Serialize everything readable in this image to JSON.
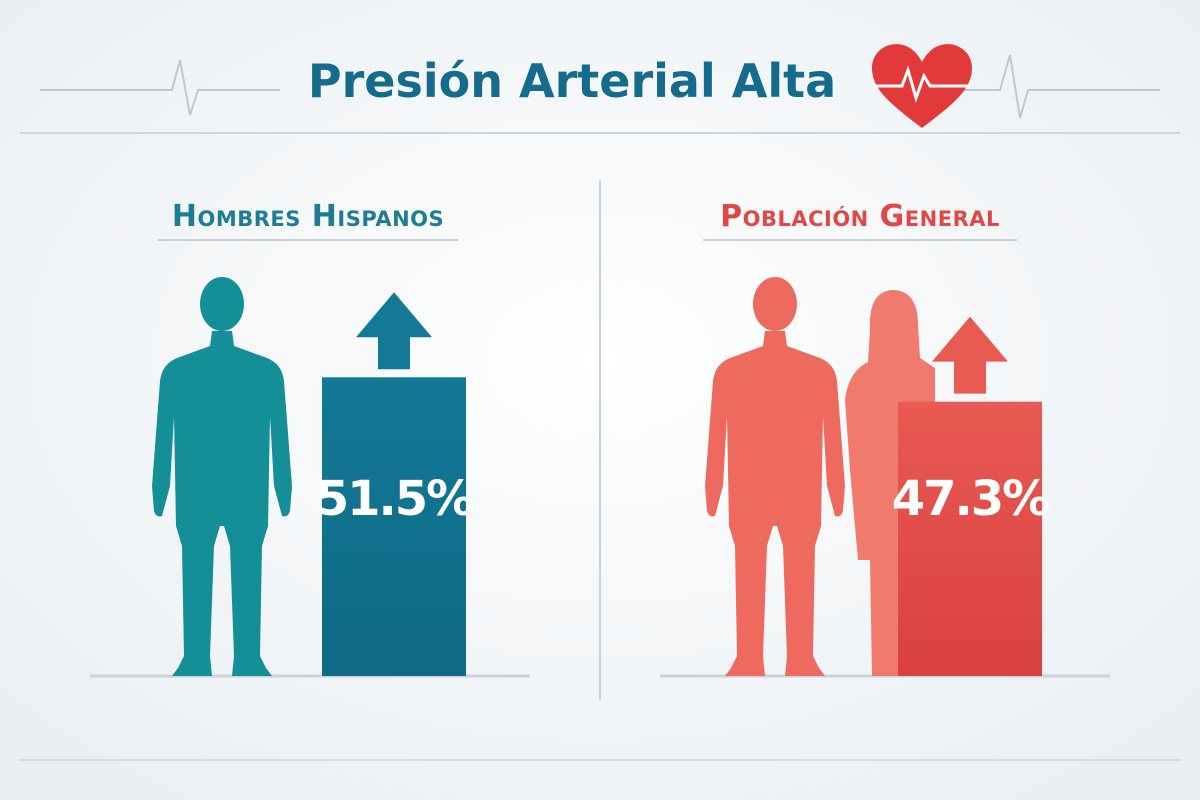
{
  "title": "Presión Arterial Alta",
  "panels": [
    {
      "title": "Hombres Hispanos",
      "value": 51.5,
      "value_label": "51.5%"
    },
    {
      "title": "Población General",
      "value": 47.3,
      "value_label": "47.3%"
    }
  ]
}
